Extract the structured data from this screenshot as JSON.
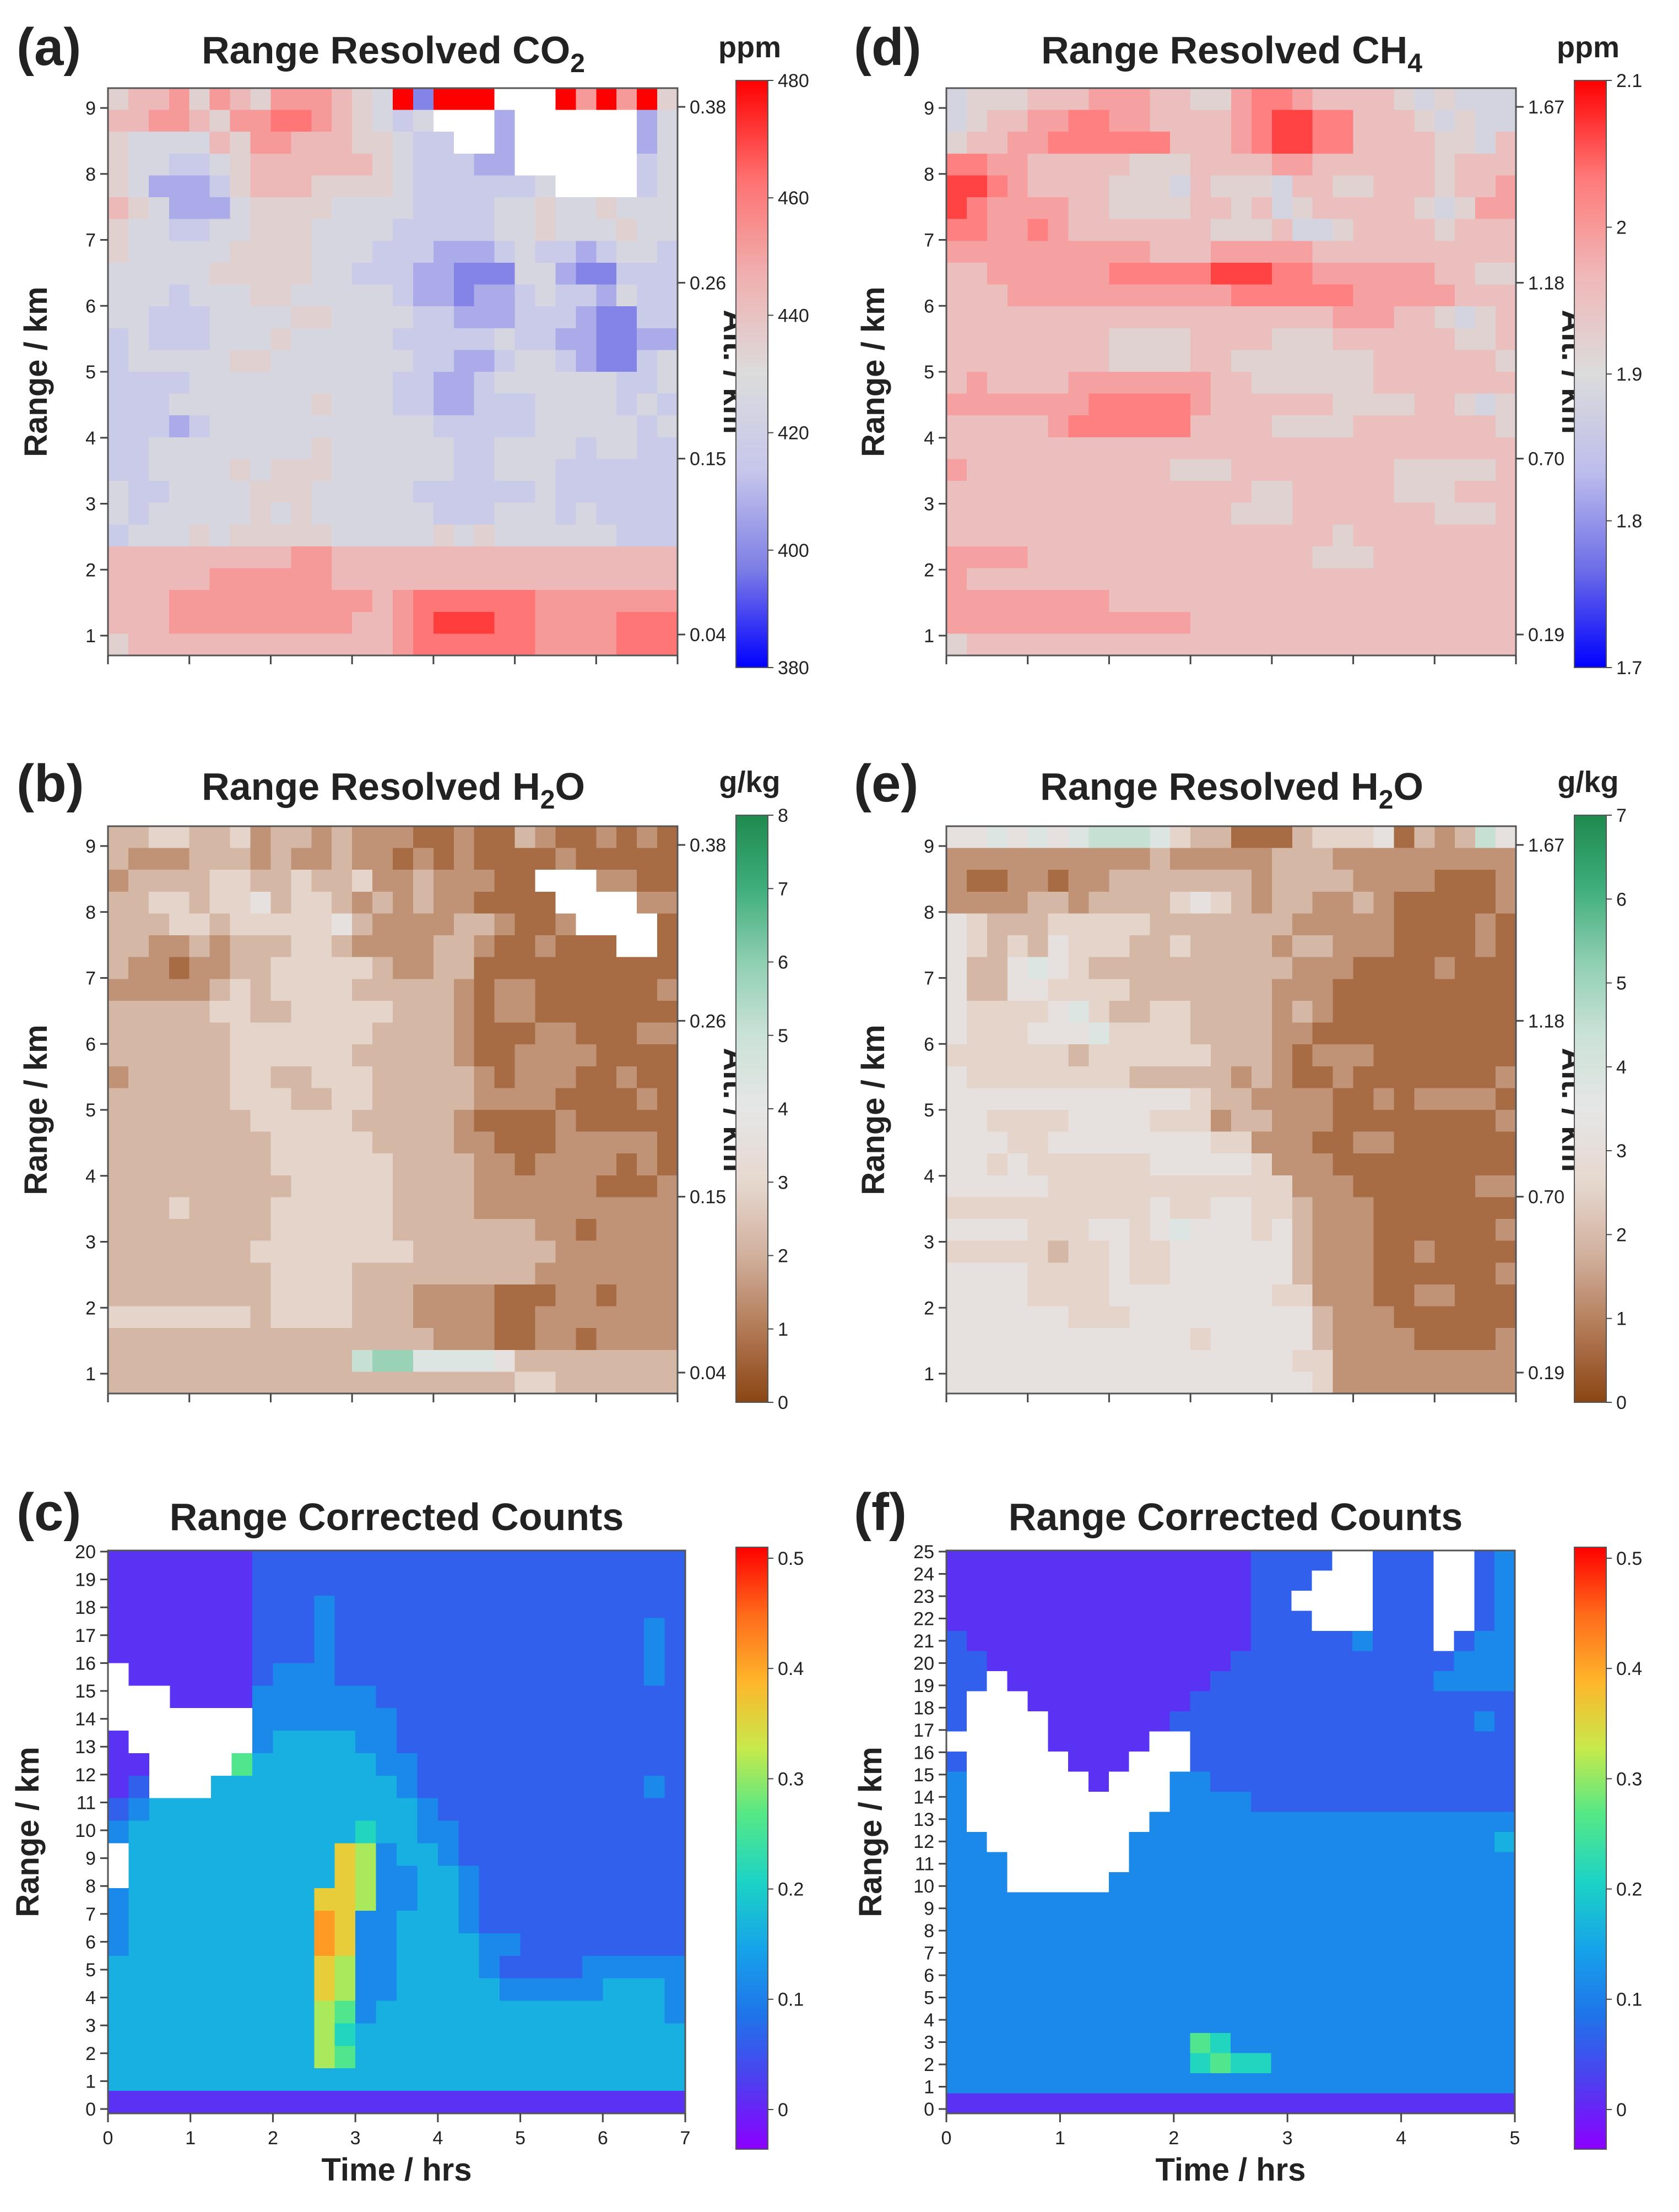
{
  "chart_data": [
    {
      "id": "a",
      "panel_label": "(a)",
      "type": "heatmap",
      "title": "Range Resolved CO",
      "title_sub": "2",
      "ylabel": "Range / km",
      "yticks": [
        "1",
        "2",
        "3",
        "4",
        "5",
        "6",
        "7",
        "8",
        "9"
      ],
      "right_axis_label": "Alt. / km",
      "right_ticks": [
        "0.04",
        "0.15",
        "0.26",
        "0.38"
      ],
      "colorbar": {
        "unit": "ppm",
        "ticks": [
          "380",
          "400",
          "420",
          "440",
          "460",
          "480"
        ],
        "palette": [
          "#0000ff",
          "#7d7de6",
          "#c6c6ec",
          "#dcdcdc",
          "#f0b0b0",
          "#ff7070",
          "#ff0000"
        ]
      },
      "x_tick_count": 8,
      "grid_cols": 28,
      "grid_rows": 26,
      "cells": [
        "ghhigihgiiihgfpcpppwwwpipiog",
        "hhiihgiijjihgfefwwwdwwwwwwdf",
        "gffffhgiihhhggfeewwdwwwwwwdf",
        "gffeefghhhhhhgfeeeddwwwwwwef",
        "gfdddeghhhggggfeeeeeefwwwwef",
        "hgfdddfggggffffeeeeffgffgfff",
        "gffeeffgggffffeeeeeffgfffgff",
        "gfffffggggfffeeedddefeedeffe",
        "fffffgggggffeeeddcccffdcceee",
        "fffefffggfffffeddcddefeedfee",
        "ffeeeffffggffffeedddeeedccee",
        "efeeefffgfffffeeeeefeeddccdd",
        "efffffggfffffffeeddeffedccef",
        "eeeeffffffffffeeddeffffffeef",
        "eeefffffffgfffeeddeeeffffefe",
        "eeedefffffffffffeeeeefffffef",
        "eeffffffffgffffffeeffffeffee",
        "eeffffgfgggffffffeefffeeeeee",
        "feeffffgggfffffeeeeeefeeeeee",
        "fefffffgfgffffffeeefffefeeee",
        "efffgfgggggfffffgfgffffffeee",
        "hhhhhhhhhiihhhhhhhhhhhhhhhhh",
        "hhhhhiiiiiihhhhhhhhhhhhhhhhh",
        "hhhiiiiiiiiiihijjjjjjiiiiiii",
        "hhhiiiiiiiiihhijkkkjjiiiijjj",
        "ghhhhhhhhhhhhhijjjjjjiiiijjj"
      ]
    },
    {
      "id": "b",
      "panel_label": "(b)",
      "type": "heatmap",
      "title": "Range Resolved H",
      "title_sub": "2",
      "title_tail": "O",
      "ylabel": "Range / km",
      "yticks": [
        "1",
        "2",
        "3",
        "4",
        "5",
        "6",
        "7",
        "8",
        "9"
      ],
      "right_axis_label": "Alt. / km",
      "right_ticks": [
        "0.04",
        "0.15",
        "0.26",
        "0.38"
      ],
      "colorbar": {
        "unit": "g/kg",
        "ticks": [
          "0",
          "1",
          "2",
          "3",
          "4",
          "5",
          "6",
          "7",
          "8"
        ],
        "palette": [
          "#8b4513",
          "#b27a56",
          "#d1b09d",
          "#e6d8cf",
          "#e6e6e6",
          "#cbe2d8",
          "#8fcfb1",
          "#3fae7c",
          "#1e8a4e"
        ]
      },
      "x_tick_count": 8,
      "grid_cols": 28,
      "grid_rows": 26,
      "cells": [
        "ddeeddecddcdcccbbcbbdcbbcbcb",
        "dcccdddcdccdccbcbcbbbbcbbbbb",
        "cddddeeddeddeccdcccbbwwwccbb",
        "ddeedeefdeedcdcdccbbbbwwwwcc",
        "dddeedeeeeefdccccddcbbcwwwwb",
        "ddccdcdddeedccccddcbbcbbbwwb",
        "dccbccddeeeeedccddbbbbbbbbbb",
        "cccccdedeeeedddddcbccbbbbbbc",
        "dddddeeddeeeeedddcbccbbbbbbb",
        "ddddddeeeeeeeddddcbbbccbbbcc",
        "ddddddeeeeeedddddcbbccccbbbb",
        "cdddddeeddeeedddddcbcccbbcbb",
        "ddddddeeeddeedddddccccbbbbcb",
        "dddddddeeeeedddddcbbbbcbbbbb",
        "ddddddddeeeeeddddccbbbcccccb",
        "ddddddddeeeeeeddddccbccccbcb",
        "dddddddddeeeeeddddccccccbbbc",
        "dddeddddeeeeeeddddcccccccccc",
        "ddddddddeeeeeedddddddccbcccc",
        "dddddddeeeeeeeedddddddcccccc",
        "ddddddddeeeedddddddddccccccc",
        "ddddddddeeeedddccccbbbccbccc",
        "eeeeeeedeeeedddccccbbccccccc",
        "ddddddddddddddddcccbbccbcccc",
        "ddddddddddddhiiggggfdddddddd",
        "ddddddddddddddddddddeedddddd"
      ]
    },
    {
      "id": "c",
      "panel_label": "(c)",
      "type": "heatmap",
      "title": "Range Corrected Counts",
      "xlabel": "Time / hrs",
      "ylabel": "Range / km",
      "xticks": [
        "0",
        "1",
        "2",
        "3",
        "4",
        "5",
        "6",
        "7"
      ],
      "xlim": [
        0,
        7
      ],
      "yticks": [
        "0",
        "1",
        "2",
        "3",
        "4",
        "5",
        "6",
        "7",
        "8",
        "9",
        "10",
        "11",
        "12",
        "13",
        "14",
        "15",
        "16",
        "17",
        "18",
        "19",
        "20"
      ],
      "ylim": [
        0,
        20
      ],
      "colorbar": {
        "unit": "",
        "ticks": [
          "0",
          "0.1",
          "0.2",
          "0.3",
          "0.4",
          "0.5"
        ],
        "palette": [
          "#8b00ff",
          "#4f3df0",
          "#1f74ea",
          "#16a3ea",
          "#1cd3c5",
          "#55e887",
          "#c8e94a",
          "#ffb52b",
          "#ff6a1a",
          "#ff0000"
        ]
      },
      "grid_cols": 28,
      "grid_rows": 25,
      "cells": [
        "bbbbbbbccccccccccccccccccccc",
        "bbbbbbbccccccccccccccccccccc",
        "bbbbbbbcccdccccccccccccccccc",
        "bbbbbbbcccdcccccccccccccccdc",
        "bbbbbbbcccdcccccccccccccccdc",
        "wbbbbbbcdddcccccccccccccccdc",
        "wwwbbbbddddddccccccccccccccc",
        "wwwwwwwdddddddcccccccccccccc",
        "bwwwwwwdeeeeddcccccccccccccc",
        "bbwwwwgeeeeeeddccccccccccccc",
        "bcwwweeeeeeeeedcccccccccccdc",
        "cdeeeeeeeeeeeeedcccccccccccc",
        "deeeeeeeeeeefeeddccccccccccc",
        "weeeeeeeeeeihdeedccccccccccc",
        "weeeeeeeeeeihddeedcccccccccc",
        "deeeeeeeeeiihddeedcccccccccc",
        "deeeeeeeeejiddeeedcccccccccc",
        "deeeeeeeeejiddeeeeddcccccccc",
        "eeeeeeeeeeihddeeeedccccddddd",
        "eeeeeeeeeeihddeeeeedddddeeed",
        "eeeeeeeeeehgdeeeeeeeeeeeeeed",
        "eeeeeeeeeehfeeeeeeeeeeeeeeee",
        "eeeeeeeeeehgeeeeeeeeeeeeeeee",
        "eeeeeeeeeeeeeeeeeeeeeeeeeeee",
        "bbbbbbbbbbbbbbbbbbbbbbbbbbbb"
      ]
    },
    {
      "id": "d",
      "panel_label": "(d)",
      "type": "heatmap",
      "title": "Range Resolved CH",
      "title_sub": "4",
      "ylabel": "Range / km",
      "yticks": [
        "1",
        "2",
        "3",
        "4",
        "5",
        "6",
        "7",
        "8",
        "9"
      ],
      "right_axis_label": "Alt. / km",
      "right_ticks": [
        "0.19",
        "0.70",
        "1.18",
        "1.67"
      ],
      "colorbar": {
        "unit": "ppm",
        "ticks": [
          "1.7",
          "1.8",
          "1.9",
          "2",
          "2.1"
        ],
        "palette": [
          "#0000ff",
          "#6d6de8",
          "#bdbdec",
          "#dcdcdc",
          "#f0b8b8",
          "#ff7a7a",
          "#ff0000"
        ]
      },
      "x_tick_count": 8,
      "grid_cols": 28,
      "grid_rows": 26,
      "cells": [
        "fggghhhiiihhggijjihhhhgfgfff",
        "fghhiijjiihhhhijkkjjhhhgfgff",
        "ghhiijjjjjjhhhijkkjjhhhhggfh",
        "jjiihhhhhggghhhhiihhhhhhghhh",
        "kkjihhhhgggfhgggfhhgghhhghhi",
        "kjiiiihhgggghhghfghhhhhgfgii",
        "jjiijihhhhhhhggghffghhhhghhh",
        "iiiiiiiiiihhhiiiiihhhhhhhhhh",
        "hhiiiiiijjjjjkkkjjiiiiiihhgg",
        "hhhiiiiiiiiiiijjjjjjiiiiihhh",
        "hhhhhhhhhhhhhhhhhhhiiihhgfgh",
        "hhhhhhhhgggghhhhggghhhhhhggh",
        "hhhhhhhhgggghhggggggghhhhhhg",
        "hihhhhiiiiiiihhgggggghhhhhhh",
        "iiiiiiijjjjjihhhhhhgggghhgfg",
        "hhhhhijjjjjjhhhhgggghhhhhhhg",
        "hhhhhhhhhhhhhhhhhhhhhhhhhhhh",
        "ihhhhhhhhhhggghhhhhhhhgggggh",
        "hhhhhhhhhhhhhhhgghhhhhggghhh",
        "hhhhhhhhhhhhhhggghhhhhhhgggh",
        "hhhhhhhhhhhhhhhhhhhghhhhhhhh",
        "iiiihhhhhhhhhhhhhhggghhhhhhh",
        "ihhhhhhhhhhhhhhhhhhhhhhhhhhh",
        "iiiiiiiihhhhhhhhhhhhhhhhhhhh",
        "iiiiiiiiiiiihhhhhhhhhhhhhhhh",
        "ghhhhhhhhhhhhhhhhhhhhhhhhhhh"
      ]
    },
    {
      "id": "e",
      "panel_label": "(e)",
      "type": "heatmap",
      "title": "Range Resolved H",
      "title_sub": "2",
      "title_tail": "O",
      "ylabel": "Range / km",
      "yticks": [
        "1",
        "2",
        "3",
        "4",
        "5",
        "6",
        "7",
        "8",
        "9"
      ],
      "right_axis_label": "Alt. / km",
      "right_ticks": [
        "0.19",
        "0.70",
        "1.18",
        "1.67"
      ],
      "colorbar": {
        "unit": "g/kg",
        "ticks": [
          "0",
          "1",
          "2",
          "3",
          "4",
          "5",
          "6",
          "7"
        ],
        "palette": [
          "#8b4513",
          "#b27a56",
          "#d1b09d",
          "#e6d8cf",
          "#e6e6e6",
          "#cbe2d8",
          "#8fcfb1",
          "#3fae7c",
          "#1e8a4e"
        ]
      },
      "x_tick_count": 8,
      "grid_cols": 28,
      "grid_rows": 26,
      "cells": [
        "ffgfgfghhhgeddbbbdeeefbdcdhf",
        "ccccccccccdcccccdddccccccccc",
        "cbbccbccdddddddcddddccccbbbc",
        "ccccddcddddefedcddccdcbbbbbc",
        "fedddeeeeedddddddcccccbbbbcb",
        "fededfeeeddeddddcddcccbbbbcb",
        "fddfgfeddddddddddcccbbbbcbbb",
        "fddffeeeedddddddcccbbbbbbbbb",
        "feeeefgeddeeddddcdcbbbbbbbbb",
        "feeefffgeeeeddddccbbbbbbbbbb",
        "eeeeeedeeeeeedddcbcccbbbbbbb",
        "feeeeeeeedddddcdcbbcbbbbbbbc",
        "ffffffffffffeddccccbbcbccccb",
        "ffeeeeffffeeecddcccbbbbbbbbc",
        "fffeeffffffffeecccbbccbbbbbb",
        "ffefeeeeeefffffecccbbbbbbbbb",
        "fffffeeeeeeeeeeeecccbbbbbbcc",
        "eeeeeeeeeefeeffeedcccbbbbbbb",
        "ffffeeeffefgfffefdcccbbbbbbc",
        "eeeeedeefeeffffffdcccbbcbbbb",
        "ffffeeeefeeffffffdcccbbbbbbc",
        "ffffeeeeffffffffeecccbbccbbb",
        "ffffffeeefffffffffdcccbbbbbb",
        "ffffffffffffefffffdccccbbbbc",
        "fffffffffffffffffeeccccccccc",
        "ffffffffffffffffffeccccccccc"
      ]
    },
    {
      "id": "f",
      "panel_label": "(f)",
      "type": "heatmap",
      "title": "Range Corrected Counts",
      "xlabel": "Time / hrs",
      "ylabel": "Range / km",
      "xticks": [
        "0",
        "1",
        "2",
        "3",
        "4",
        "5"
      ],
      "xlim": [
        0,
        5
      ],
      "yticks": [
        "0",
        "1",
        "2",
        "3",
        "4",
        "5",
        "6",
        "7",
        "8",
        "9",
        "10",
        "11",
        "12",
        "13",
        "14",
        "15",
        "16",
        "17",
        "18",
        "19",
        "20",
        "21",
        "22",
        "23",
        "24",
        "25"
      ],
      "ylim": [
        0,
        25
      ],
      "colorbar": {
        "unit": "",
        "ticks": [
          "0",
          "0.1",
          "0.2",
          "0.3",
          "0.4",
          "0.5"
        ],
        "palette": [
          "#8b00ff",
          "#4f3df0",
          "#1f74ea",
          "#16a3ea",
          "#1cd3c5",
          "#55e887",
          "#c8e94a",
          "#ffb52b",
          "#ff6a1a",
          "#ff0000"
        ]
      },
      "grid_cols": 28,
      "grid_rows": 28,
      "cells": [
        "bbbbbbbbbbbbbbbccccwwcccwwcd",
        "bbbbbbbbbbbbbbbcccwwwcccwwcd",
        "bbbbbbbbbbbbbbbccwwwwcccwwcd",
        "bbbbbbbbbbbbbbbcccwwwcccwwcd",
        "cbbbbbbbbbbbbbbcccccdcccwcdd",
        "ccbbbbbbbbbbbbcccccccccccddd",
        "ccwbbbbbbbbbbcccccccccccdddd",
        "cwwwbbbbbbbbcccccccccccccccc",
        "cwwwwbbbbbbcccccccccccccccdc",
        "wwwwwbbbbbwwcccccccccccccccc",
        "cwwwwwbbbwwwcccccccccccccccc",
        "dwwwwwwbwwwddccccccccccccccc",
        "dwwwwwwwwwwddddccccccccccccc",
        "dwwwwwwwwwdddddddddddddddddd",
        "ddwwwwwwwdddddddddddddddddde",
        "dddwwwwwwddddddddddddddddddd",
        "dddwwwwwdddddddddddddddddddd",
        "dddddddddddddddddddddddddddd",
        "dddddddddddddddddddddddddddd",
        "dddddddddddddddddddddddddddd",
        "dddddddddddddddddddddddddddd",
        "dddddddddddddddddddddddddddd",
        "dddddddddddddddddddddddddddd",
        "dddddddddddddddddddddddddddd",
        "ddddddddddddgfdddddddddddddd",
        "ddddddddddddfgffdddddddddddd",
        "dddddddddddddddddddddddddddd",
        "bbbbbbbbbbbbbbbbbbbbbbbbbbbb"
      ]
    }
  ]
}
